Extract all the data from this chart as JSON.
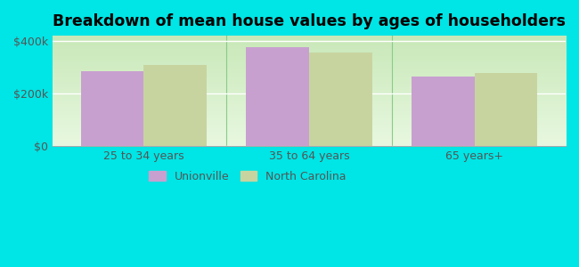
{
  "title": "Breakdown of mean house values by ages of householders",
  "categories": [
    "25 to 34 years",
    "35 to 64 years",
    "65 years+"
  ],
  "unionville_values": [
    285000,
    375000,
    265000
  ],
  "nc_values": [
    310000,
    355000,
    278000
  ],
  "bar_color_unionville": "#c8a0d0",
  "bar_color_nc": "#c8d4a0",
  "background_color": "#00e5e5",
  "ylim": [
    0,
    420000
  ],
  "yticks": [
    0,
    200000,
    400000
  ],
  "ytick_labels": [
    "$0",
    "$200k",
    "$400k"
  ],
  "legend_labels": [
    "Unionville",
    "North Carolina"
  ],
  "bar_width": 0.38,
  "title_fontsize": 12.5,
  "tick_fontsize": 9,
  "legend_fontsize": 9
}
